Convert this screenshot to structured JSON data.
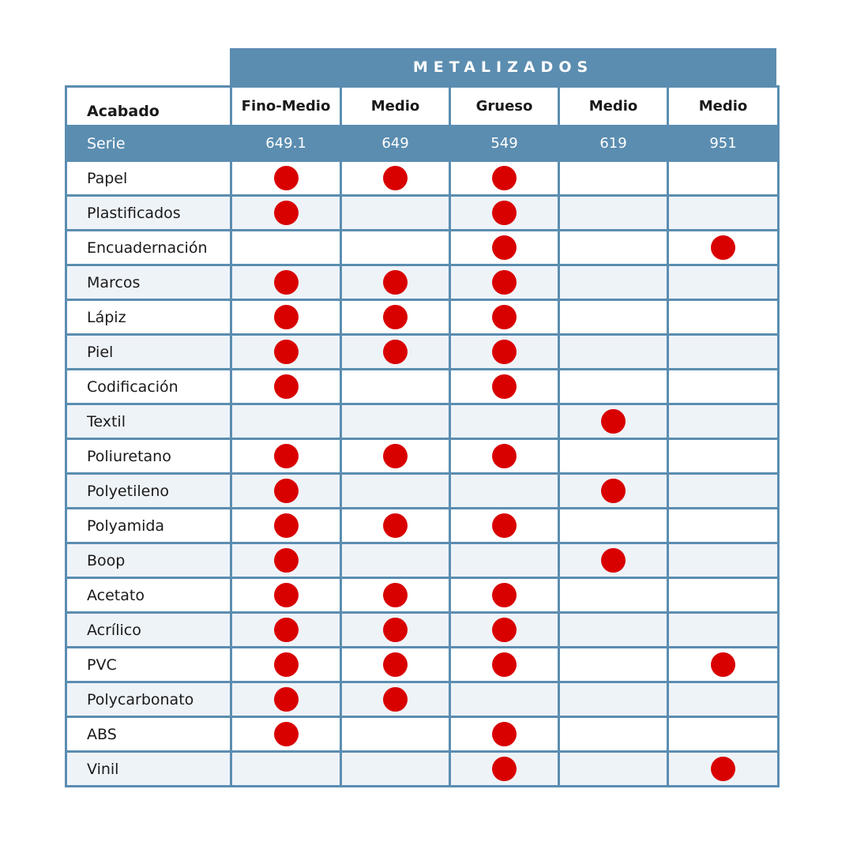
{
  "banner": "METALIZADOS",
  "header": {
    "first": "Acabado",
    "columns": [
      "Fino-Medio",
      "Medio",
      "Grueso",
      "Medio",
      "Medio"
    ]
  },
  "serie": {
    "label": "Serie",
    "values": [
      "649.1",
      "649",
      "549",
      "619",
      "951"
    ]
  },
  "rows": [
    {
      "label": "Papel",
      "marks": [
        true,
        true,
        true,
        false,
        false
      ]
    },
    {
      "label": "Plastificados",
      "marks": [
        true,
        false,
        true,
        false,
        false
      ]
    },
    {
      "label": "Encuadernación",
      "marks": [
        false,
        false,
        true,
        false,
        true
      ]
    },
    {
      "label": "Marcos",
      "marks": [
        true,
        true,
        true,
        false,
        false
      ]
    },
    {
      "label": "Lápiz",
      "marks": [
        true,
        true,
        true,
        false,
        false
      ]
    },
    {
      "label": "Piel",
      "marks": [
        true,
        true,
        true,
        false,
        false
      ]
    },
    {
      "label": "Codificación",
      "marks": [
        true,
        false,
        true,
        false,
        false
      ]
    },
    {
      "label": "Textil",
      "marks": [
        false,
        false,
        false,
        true,
        false
      ]
    },
    {
      "label": "Poliuretano",
      "marks": [
        true,
        true,
        true,
        false,
        false
      ]
    },
    {
      "label": "Polyetileno",
      "marks": [
        true,
        false,
        false,
        true,
        false
      ]
    },
    {
      "label": "Polyamida",
      "marks": [
        true,
        true,
        true,
        false,
        false
      ]
    },
    {
      "label": "Boop",
      "marks": [
        true,
        false,
        false,
        true,
        false
      ]
    },
    {
      "label": "Acetato",
      "marks": [
        true,
        true,
        true,
        false,
        false
      ]
    },
    {
      "label": "Acrílico",
      "marks": [
        true,
        true,
        true,
        false,
        false
      ]
    },
    {
      "label": "PVC",
      "marks": [
        true,
        true,
        true,
        false,
        true
      ]
    },
    {
      "label": "Polycarbonato",
      "marks": [
        true,
        true,
        false,
        false,
        false
      ]
    },
    {
      "label": "ABS",
      "marks": [
        true,
        false,
        true,
        false,
        false
      ]
    },
    {
      "label": "Vinil",
      "marks": [
        false,
        false,
        true,
        false,
        true
      ]
    }
  ],
  "colors": {
    "header_blue": "#5b8db0",
    "dot_red": "#d90000",
    "row_alt": "#eef3f8"
  }
}
